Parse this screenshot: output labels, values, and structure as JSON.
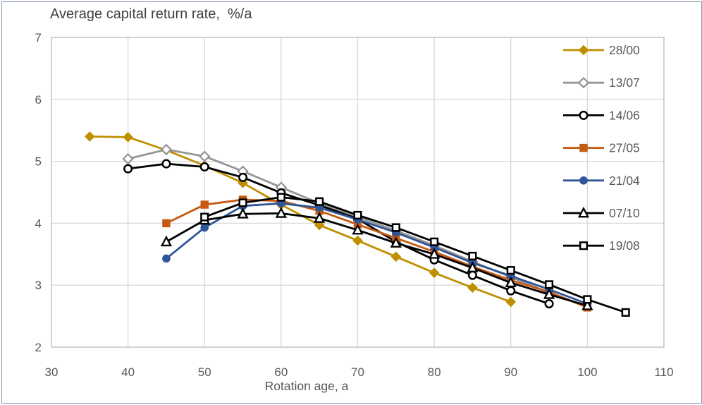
{
  "chart_data": {
    "type": "line",
    "title": "Average capital return rate,  %/a",
    "xlabel": "Rotation age, a",
    "ylabel": "",
    "xlim": [
      30,
      110
    ],
    "ylim": [
      2,
      7
    ],
    "x_ticks": [
      30,
      40,
      50,
      60,
      70,
      80,
      90,
      100,
      110
    ],
    "y_ticks": [
      2,
      3,
      4,
      5,
      6,
      7
    ],
    "grid": true,
    "legend_position": "inside-top-right",
    "colors": {
      "grid": "#D9D9D9",
      "plot_border": "#BFBFBF",
      "axis_text": "#595959",
      "title_text": "#404040",
      "frame_border": "#8497B0"
    },
    "series": [
      {
        "name": "28/00",
        "color": "#BF8F00",
        "marker": "diamond",
        "fill": "solid",
        "points": [
          [
            35,
            5.4
          ],
          [
            40,
            5.39
          ],
          [
            45,
            5.18
          ],
          [
            50,
            4.93
          ],
          [
            55,
            4.65
          ],
          [
            60,
            4.3
          ],
          [
            65,
            3.97
          ],
          [
            70,
            3.72
          ],
          [
            75,
            3.46
          ],
          [
            80,
            3.2
          ],
          [
            85,
            2.96
          ],
          [
            90,
            2.73
          ]
        ]
      },
      {
        "name": "13/07",
        "color": "#959595",
        "marker": "diamond",
        "fill": "open",
        "points": [
          [
            40,
            5.04
          ],
          [
            45,
            5.19
          ],
          [
            50,
            5.08
          ],
          [
            55,
            4.84
          ],
          [
            60,
            4.58
          ],
          [
            65,
            4.32
          ],
          [
            70,
            4.1
          ],
          [
            75,
            3.88
          ],
          [
            80,
            3.64
          ],
          [
            85,
            3.38
          ],
          [
            90,
            3.13
          ],
          [
            95,
            2.88
          ]
        ]
      },
      {
        "name": "14/06",
        "color": "#000000",
        "marker": "circle",
        "fill": "open",
        "points": [
          [
            40,
            4.88
          ],
          [
            45,
            4.96
          ],
          [
            50,
            4.91
          ],
          [
            55,
            4.74
          ],
          [
            60,
            4.49
          ],
          [
            65,
            4.29
          ],
          [
            70,
            4.07
          ],
          [
            75,
            3.7
          ],
          [
            80,
            3.41
          ],
          [
            85,
            3.16
          ],
          [
            90,
            2.91
          ],
          [
            95,
            2.7
          ]
        ]
      },
      {
        "name": "27/05",
        "color": "#C55A11",
        "marker": "square",
        "fill": "solid",
        "points": [
          [
            45,
            4.0
          ],
          [
            50,
            4.3
          ],
          [
            55,
            4.38
          ],
          [
            60,
            4.36
          ],
          [
            65,
            4.2
          ],
          [
            70,
            3.98
          ],
          [
            75,
            3.76
          ],
          [
            80,
            3.54
          ],
          [
            85,
            3.3
          ],
          [
            90,
            3.08
          ],
          [
            95,
            2.89
          ],
          [
            100,
            2.64
          ]
        ]
      },
      {
        "name": "21/04",
        "color": "#2F5597",
        "marker": "circle",
        "fill": "solid",
        "points": [
          [
            45,
            3.43
          ],
          [
            50,
            3.93
          ],
          [
            55,
            4.28
          ],
          [
            60,
            4.32
          ],
          [
            65,
            4.25
          ],
          [
            70,
            4.06
          ],
          [
            75,
            3.85
          ],
          [
            80,
            3.61
          ],
          [
            85,
            3.36
          ],
          [
            90,
            3.15
          ],
          [
            95,
            2.93
          ],
          [
            100,
            2.7
          ]
        ]
      },
      {
        "name": "07/10",
        "color": "#000000",
        "marker": "triangle",
        "fill": "open",
        "points": [
          [
            45,
            3.7
          ],
          [
            50,
            4.05
          ],
          [
            55,
            4.15
          ],
          [
            60,
            4.16
          ],
          [
            65,
            4.08
          ],
          [
            70,
            3.89
          ],
          [
            75,
            3.68
          ],
          [
            80,
            3.5
          ],
          [
            85,
            3.28
          ],
          [
            90,
            3.04
          ],
          [
            95,
            2.85
          ],
          [
            100,
            2.67
          ]
        ]
      },
      {
        "name": "19/08",
        "color": "#000000",
        "marker": "square",
        "fill": "open",
        "points": [
          [
            50,
            4.1
          ],
          [
            55,
            4.33
          ],
          [
            60,
            4.42
          ],
          [
            65,
            4.35
          ],
          [
            70,
            4.13
          ],
          [
            75,
            3.93
          ],
          [
            80,
            3.7
          ],
          [
            85,
            3.47
          ],
          [
            90,
            3.24
          ],
          [
            95,
            3.01
          ],
          [
            100,
            2.77
          ],
          [
            105,
            2.56
          ]
        ]
      }
    ]
  }
}
